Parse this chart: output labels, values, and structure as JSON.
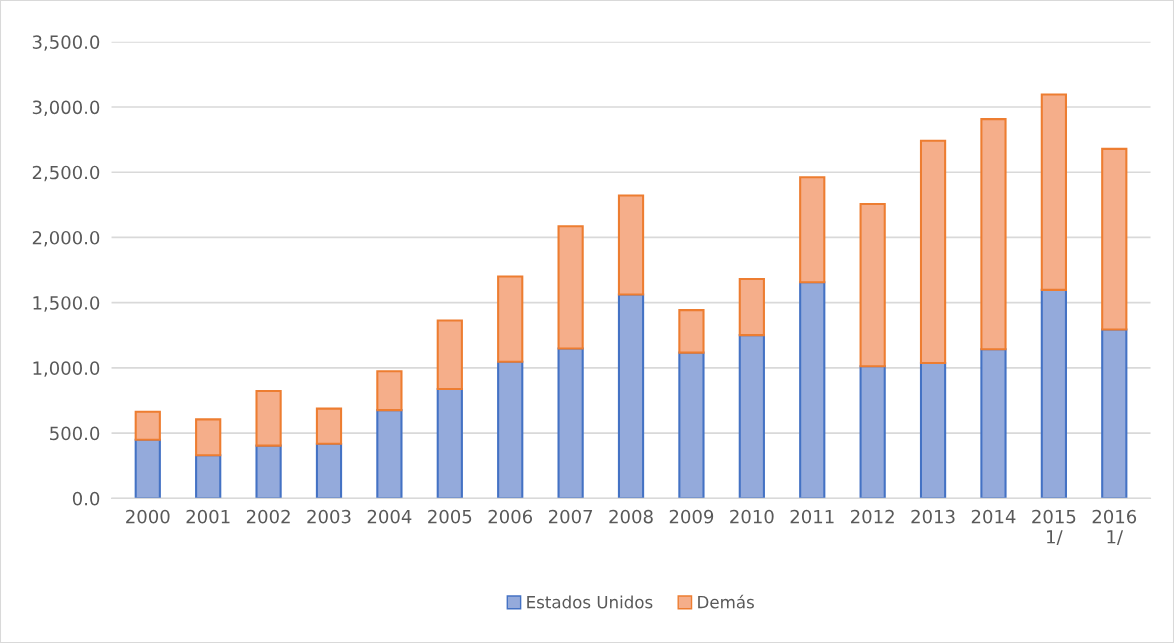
{
  "chart_data": {
    "type": "bar",
    "stacked": true,
    "categories": [
      "2000",
      "2001",
      "2002",
      "2003",
      "2004",
      "2005",
      "2006",
      "2007",
      "2008",
      "2009",
      "2010",
      "2011",
      "2012",
      "2013",
      "2014",
      "2015\n1/",
      "2016\n1/"
    ],
    "series": [
      {
        "name": "Estados Unidos",
        "color": "#94aadb",
        "values": [
          449,
          330,
          404,
          419,
          676,
          838,
          1047,
          1148,
          1563,
          1117,
          1251,
          1656,
          1012,
          1038,
          1143,
          1598,
          1294
        ]
      },
      {
        "name": "Demás",
        "color": "#f5ae8a",
        "values": [
          215,
          275,
          419,
          269,
          298,
          525,
          653,
          938,
          758,
          326,
          431,
          805,
          1245,
          1703,
          1764,
          1498,
          1385
        ]
      }
    ],
    "ylim": [
      0,
      3500
    ],
    "yticks": [
      {
        "value": 0,
        "label": "0.0"
      },
      {
        "value": 500,
        "label": "500.0"
      },
      {
        "value": 1000,
        "label": "1,000.0"
      },
      {
        "value": 1500,
        "label": "1,500.0"
      },
      {
        "value": 2000,
        "label": "2,000.0"
      },
      {
        "value": 2500,
        "label": "2,500.0"
      },
      {
        "value": 3000,
        "label": "3,000.0"
      },
      {
        "value": 3500,
        "label": "3,500.0"
      }
    ],
    "grid": "y",
    "legend": "bottom"
  }
}
